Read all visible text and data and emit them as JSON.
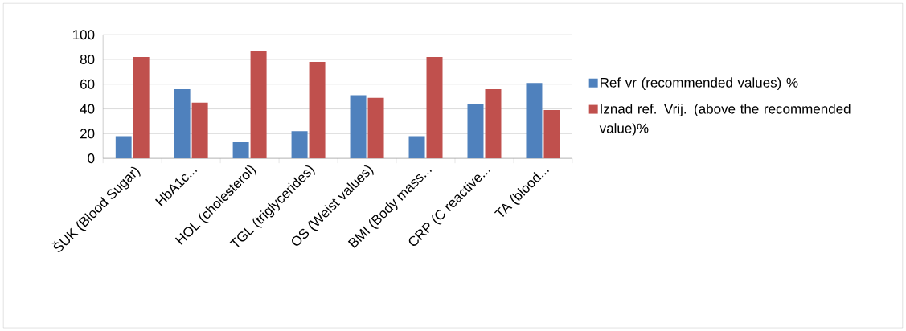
{
  "chart_data": {
    "type": "bar",
    "categories": [
      "ŠUK (Blood Sugar)",
      "HbA1c...",
      "HOL (cholesterol)",
      "TGL (triglycerides)",
      "OS (Weist values)",
      "BMI (Body mass...",
      "CRP (C reactive...",
      "TA (blood..."
    ],
    "series": [
      {
        "name": "Ref vr (recommended values) %",
        "color": "#4f81bd",
        "values": [
          18,
          56,
          13,
          22,
          51,
          18,
          44,
          61
        ]
      },
      {
        "name": "Iznad ref. Vrij. (above the recommended value)%",
        "color": "#c0504d",
        "values": [
          82,
          45,
          87,
          78,
          49,
          82,
          56,
          39
        ]
      }
    ],
    "ylim": [
      0,
      100
    ],
    "yticks": [
      0,
      20,
      40,
      60,
      80,
      100
    ],
    "grid": "y",
    "legend": "right"
  }
}
